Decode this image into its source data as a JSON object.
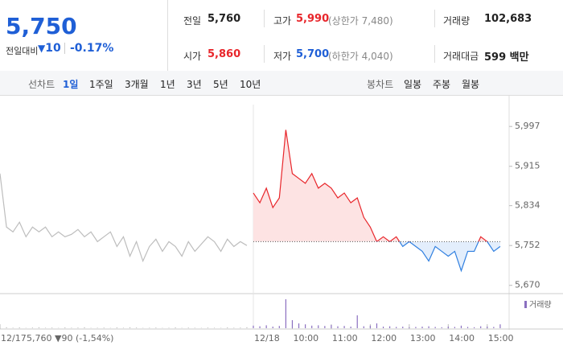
{
  "quote": {
    "price": "5,750",
    "change_label": "전일대비",
    "change": "10",
    "change_pct": "-0.17%"
  },
  "stats": [
    {
      "label": "전일",
      "value": "5,760"
    },
    {
      "label": "고가",
      "value": "5,990",
      "note": "(상한가 7,480)"
    },
    {
      "label": "거래량",
      "value": "102,683"
    },
    {
      "label": "시가",
      "value": "5,860"
    },
    {
      "label": "저가",
      "value": "5,700",
      "note": "(하한가 4,040)"
    },
    {
      "label": "거래대금",
      "value": "599 백만"
    }
  ],
  "tabs": {
    "line_label": "선차트",
    "line": [
      "1일",
      "1주일",
      "3개월",
      "1년",
      "3년",
      "5년",
      "10년"
    ],
    "candle_label": "봉차트",
    "candle": [
      "일봉",
      "주봉",
      "월봉"
    ]
  },
  "chart_data": {
    "type": "line",
    "values": [
      5900,
      5790,
      5780,
      5800,
      5770,
      5790,
      5780,
      5790,
      5770,
      5780,
      5770,
      5775,
      5785,
      5770,
      5780,
      5760,
      5770,
      5780,
      5750,
      5770,
      5730,
      5760,
      5720,
      5750,
      5765,
      5740,
      5760,
      5750,
      5730,
      5760,
      5740,
      5755,
      5770,
      5760,
      5740,
      5765,
      5750,
      5760,
      5752,
      5860,
      5840,
      5870,
      5830,
      5850,
      5990,
      5900,
      5890,
      5880,
      5900,
      5870,
      5880,
      5870,
      5850,
      5860,
      5840,
      5850,
      5810,
      5790,
      5760,
      5770,
      5760,
      5770,
      5750,
      5760,
      5750,
      5740,
      5720,
      5750,
      5740,
      5730,
      5740,
      5700,
      5740,
      5740,
      5770,
      5760,
      5740,
      5750
    ],
    "volume": [
      200,
      300,
      150,
      250,
      100,
      200,
      300,
      150,
      200,
      100,
      250,
      150,
      200,
      300,
      100,
      150,
      200,
      100,
      250,
      150,
      300,
      200,
      100,
      150,
      200,
      100,
      150,
      250,
      100,
      200,
      150,
      100,
      200,
      150,
      100,
      250,
      150,
      200,
      300,
      800,
      600,
      900,
      500,
      700,
      9000,
      2500,
      1500,
      1200,
      800,
      900,
      700,
      1000,
      600,
      700,
      500,
      4000,
      600,
      800,
      1500,
      500,
      600,
      400,
      500,
      300,
      400,
      500,
      600,
      400,
      300,
      500,
      400,
      800,
      400,
      300,
      600,
      500,
      400,
      1200
    ],
    "volume_label": "거래량",
    "baseline": 5760,
    "xlim": [
      0,
      78
    ],
    "xticks": [
      {
        "value": 0,
        "label": "12/17"
      },
      {
        "value": 39,
        "label": "12/18"
      },
      {
        "value": 45,
        "label": "10:00"
      },
      {
        "value": 51,
        "label": "11:00"
      },
      {
        "value": 57,
        "label": "12:00"
      },
      {
        "value": 63,
        "label": "13:00"
      },
      {
        "value": 69,
        "label": "14:00"
      },
      {
        "value": 75,
        "label": "15:00"
      }
    ],
    "ylim": [
      5653,
      6042
    ],
    "yticks": [
      {
        "value": 5670,
        "label": "5,670"
      },
      {
        "value": 5752,
        "label": "5,752"
      },
      {
        "value": 5834,
        "label": "5,834"
      },
      {
        "value": 5915,
        "label": "5,915"
      },
      {
        "value": 5997,
        "label": "5,997"
      }
    ],
    "prev_summary": "5,760 ▼90 (-1,54%)",
    "colors": {
      "prev": "#bdbdbd",
      "up": "#e8262b",
      "down": "#2f7fe0",
      "volume": "#8a6fc0"
    }
  }
}
